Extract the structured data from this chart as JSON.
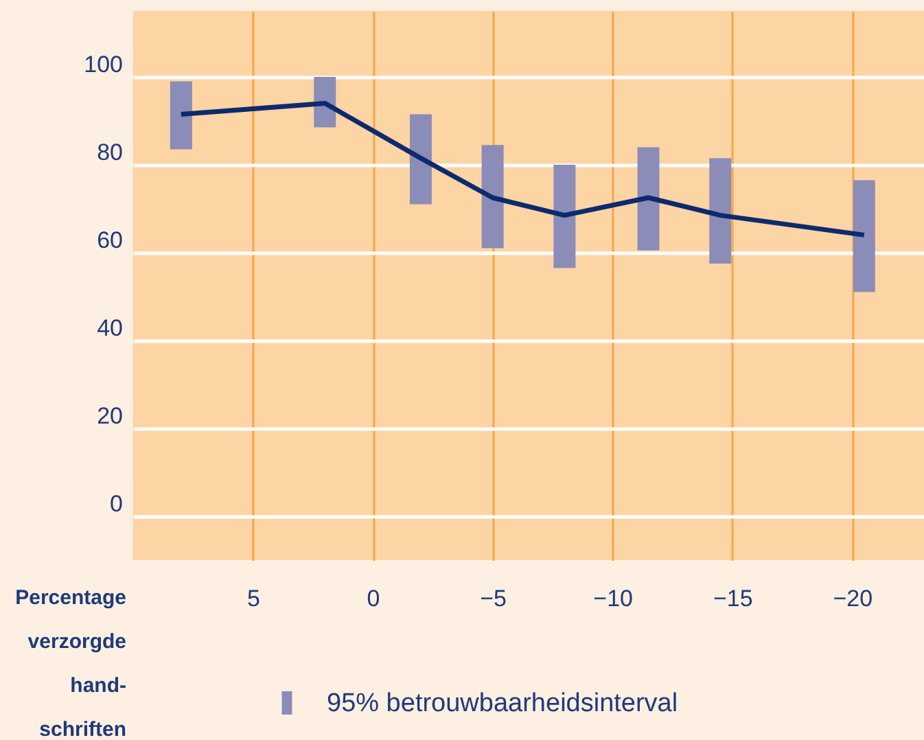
{
  "chart_data": {
    "type": "line",
    "xlabel": "Percentage verzorgde hand-schriften",
    "x": [
      8,
      2,
      -2,
      -5,
      -8,
      -11.5,
      -14.5,
      -20.5
    ],
    "series": [
      {
        "type": "bar",
        "name": "95% betrouwbaarheidsinterval",
        "color": "#8b8cb8",
        "base": [
          83.5,
          88.5,
          71,
          61,
          56.5,
          60.5,
          57.5,
          51
        ],
        "values": [
          15.5,
          11.5,
          20.5,
          23.5,
          23.5,
          23.5,
          24,
          25.5
        ]
      },
      {
        "type": "line",
        "color": "#0d2a6e",
        "values": [
          91.5,
          94,
          81.5,
          72.5,
          68.5,
          72.5,
          68.5,
          64
        ]
      }
    ],
    "xlim": [
      10,
      -23
    ],
    "xticks": [
      5,
      0,
      -5,
      -10,
      -15,
      -20
    ],
    "ylim": [
      -10,
      115
    ],
    "yticks": [
      0,
      20,
      40,
      60,
      80,
      100
    ],
    "grid": true,
    "legend": "bottom",
    "marker": "none",
    "line_style": "solid"
  }
}
